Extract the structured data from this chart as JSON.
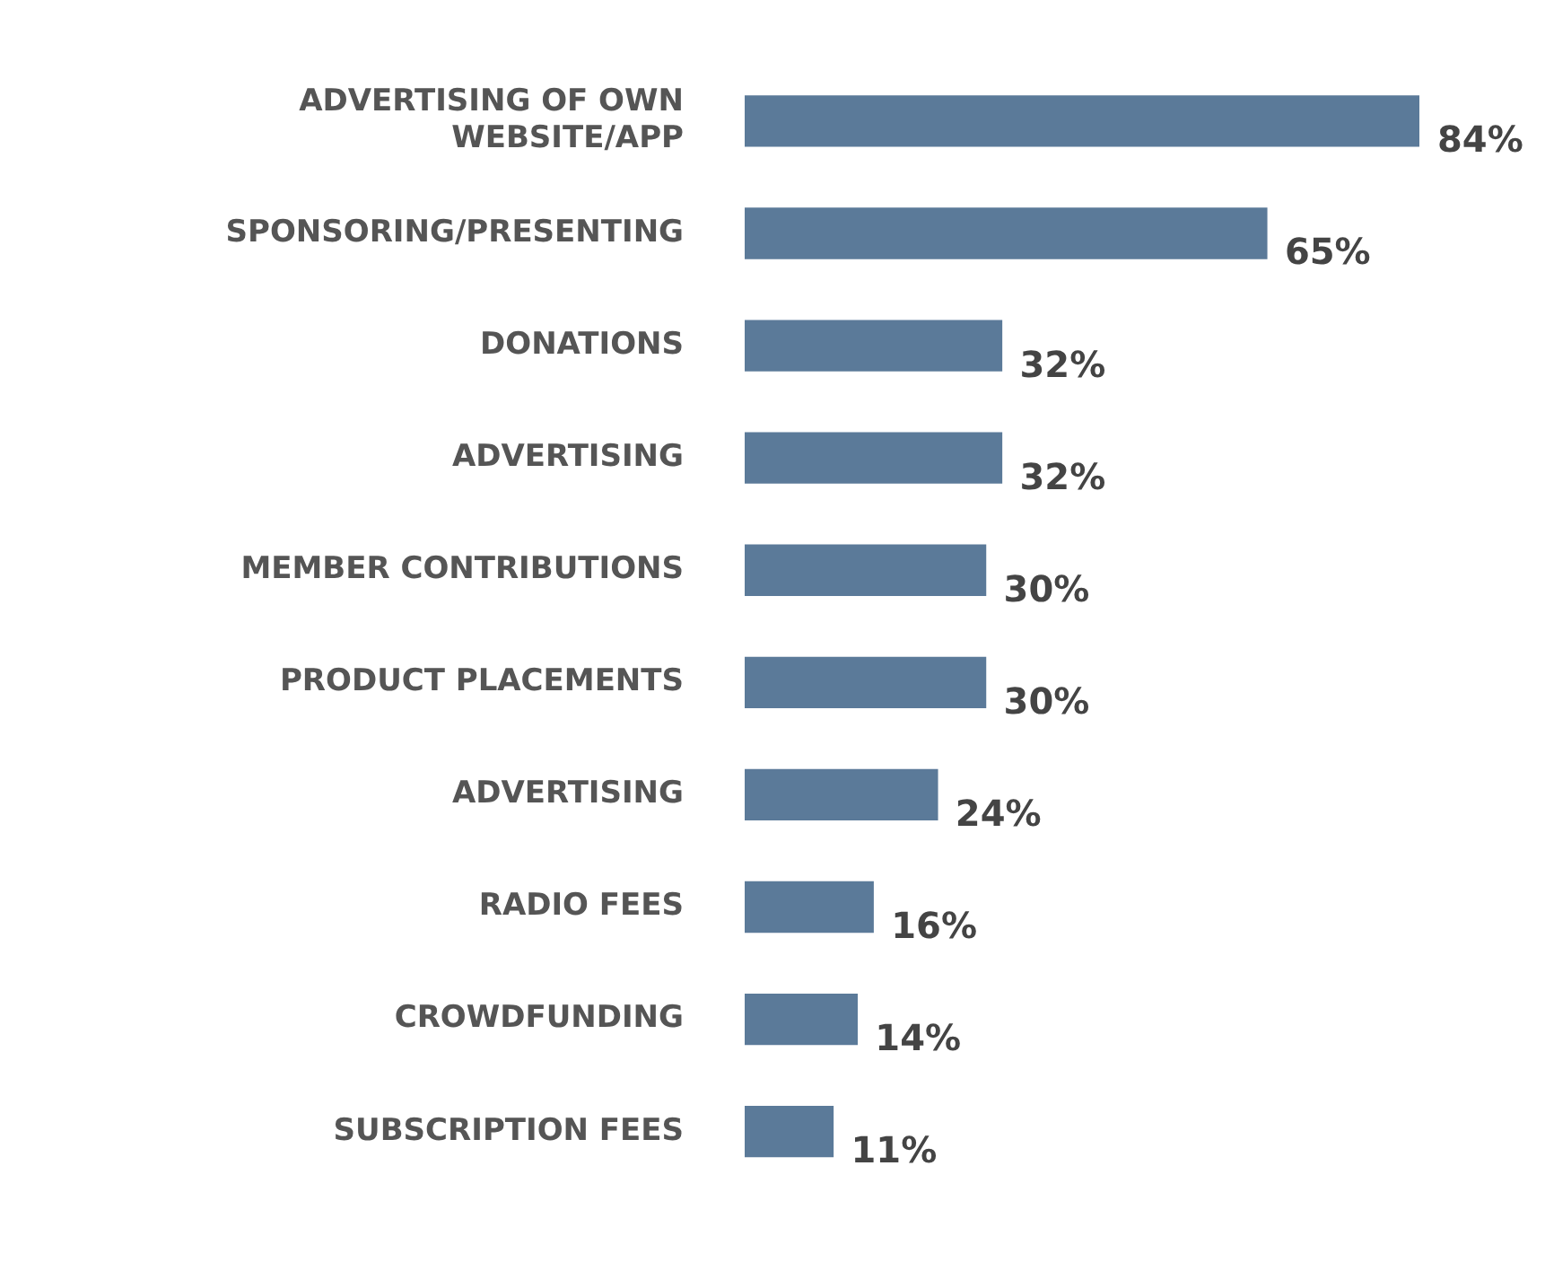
{
  "chart_data": {
    "type": "bar",
    "orientation": "horizontal",
    "categories": [
      "ADVERTISING OF OWN WEBSITE/APP",
      "SPONSORING/PRESENTING",
      "DONATIONS",
      "ADVERTISING",
      "MEMBER CONTRIBUTIONS",
      "PRODUCT PLACEMENTS",
      "ADVERTISING",
      "RADIO FEES",
      "CROWDFUNDING",
      "SUBSCRIPTION FEES"
    ],
    "values": [
      84,
      65,
      32,
      32,
      30,
      30,
      24,
      16,
      14,
      11
    ],
    "value_labels": [
      "84%",
      "65%",
      "32%",
      "32%",
      "30%",
      "30%",
      "24%",
      "16%",
      "14%",
      "11%"
    ],
    "color": "#5b7a99",
    "tick_labels": "y"
  }
}
